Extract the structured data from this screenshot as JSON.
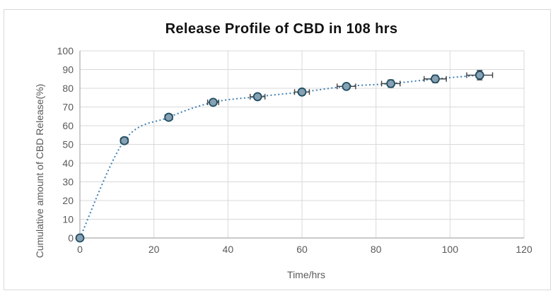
{
  "window": {
    "background": "#ffffff",
    "frame_border_color": "#d9d9d9"
  },
  "chart_data": {
    "type": "scatter",
    "title": "Release Profile of CBD in 108 hrs",
    "xlabel": "Time/hrs",
    "ylabel": "Cumulative amount of CBD Release(%)",
    "x": [
      0,
      12,
      24,
      36,
      48,
      60,
      72,
      84,
      96,
      108
    ],
    "y": [
      0,
      52,
      64.5,
      72.5,
      75.5,
      78,
      81,
      82.5,
      85,
      87
    ],
    "x_err": [
      0,
      1,
      1,
      1.5,
      2,
      2,
      2.5,
      2.5,
      3,
      3.5
    ],
    "y_err": [
      0,
      1.5,
      1.5,
      1.5,
      1.5,
      1.5,
      1.5,
      2,
      2,
      2.5
    ],
    "xlim": [
      0,
      120
    ],
    "ylim": [
      0,
      100
    ],
    "xticks": [
      0,
      20,
      40,
      60,
      80,
      100,
      120
    ],
    "yticks": [
      0,
      10,
      20,
      30,
      40,
      50,
      60,
      70,
      80,
      90,
      100
    ],
    "grid": true,
    "legend": false,
    "line_style": "dotted",
    "colors": {
      "line": "#3e7fb5",
      "marker_fill": "#87a0b2",
      "marker_edge": "#1f4e63",
      "error_bar": "#404040",
      "grid": "#d9d9d9",
      "axis": "#aaaaaa",
      "tick_text": "#595959",
      "title_text": "#111111"
    }
  }
}
